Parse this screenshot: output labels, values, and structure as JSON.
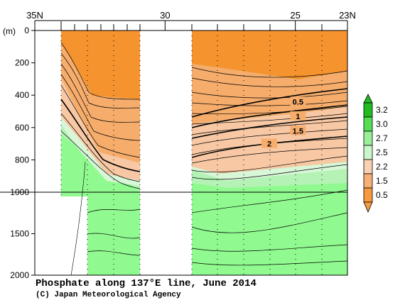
{
  "chart_data": {
    "type": "contour-section",
    "title": "Phosphate along 137°E line, June 2014",
    "credit": "(C) Japan Meteorological Agency",
    "y_unit": "(m)",
    "x_ticks": [
      {
        "value": 35,
        "label": "35N"
      },
      {
        "value": 30,
        "label": "30"
      },
      {
        "value": 25,
        "label": "25"
      },
      {
        "value": 23,
        "label": "23N"
      }
    ],
    "x_range": [
      35,
      23
    ],
    "y_ticks_upper": [
      0,
      200,
      400,
      600,
      800,
      1000
    ],
    "y_ticks_lower": [
      1500,
      2000
    ],
    "y_range": [
      0,
      2000
    ],
    "y_scale_break": 1000,
    "contour_labels": [
      {
        "text": "0.5",
        "lat": 24.9,
        "depth": 440
      },
      {
        "text": "1",
        "lat": 24.9,
        "depth": 530
      },
      {
        "text": "1.5",
        "lat": 24.9,
        "depth": 620
      },
      {
        "text": "2",
        "lat": 26.0,
        "depth": 700
      }
    ],
    "colorbar": {
      "labels": [
        "3.2",
        "3.0",
        "2.7",
        "2.5",
        "2.2",
        "1.5",
        "0.5"
      ],
      "colors": [
        "#22bb22",
        "#55dd55",
        "#99ee99",
        "#ccf5cc",
        "#f8d0b4",
        "#f5b07a",
        "#f59a3e"
      ]
    },
    "colors": {
      "orange": "#f5932f",
      "orange_mid": "#f6ad6c",
      "salmon": "#f8c8a4",
      "pale_green": "#d8f6d8",
      "light_green": "#b5f2b5",
      "green": "#90fa90"
    }
  }
}
